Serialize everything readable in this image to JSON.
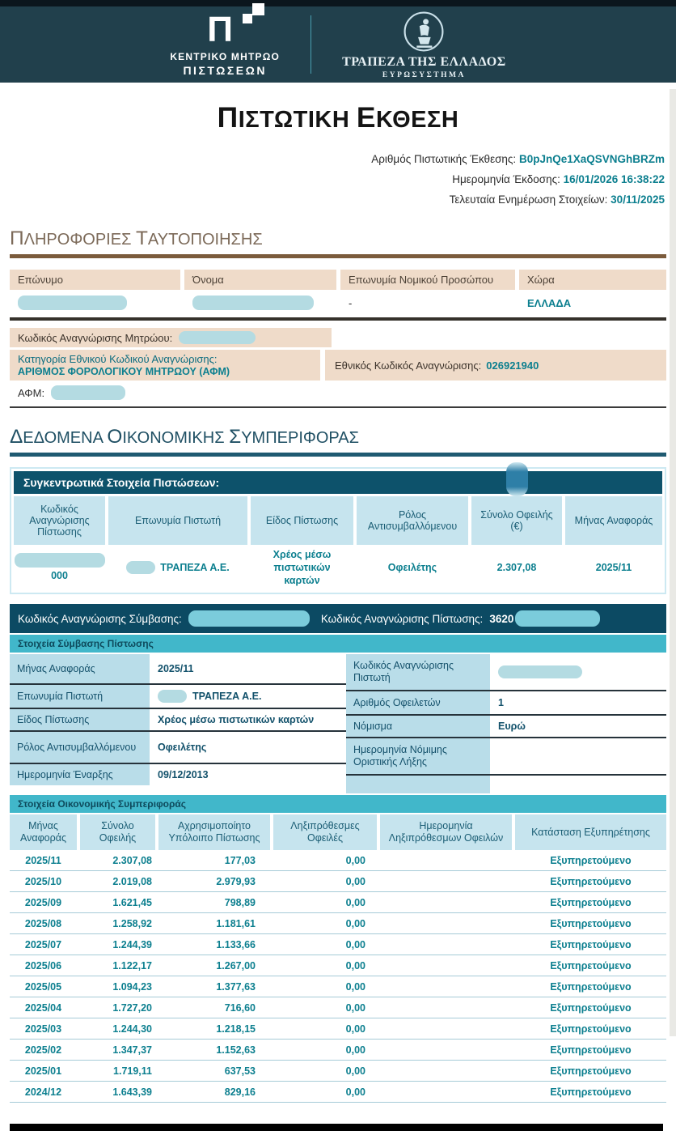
{
  "page": {
    "title": "ΠΙΣΤΩΤΙΚΗ ΕΚΘΕΣΗ"
  },
  "header": {
    "left_logo": {
      "line1": "ΚΕΝΤΡΙΚΟ ΜΗΤΡΩΟ",
      "line2": "ΠΙΣΤΩΣΕΩΝ"
    },
    "right_logo": {
      "line1": "ΤΡΑΠΕΖΑ ΤΗΣ ΕΛΛΑΔΟΣ",
      "line2": "ΕΥΡΩΣΥΣΤΗΜΑ"
    }
  },
  "meta": {
    "report_number_label": "Αριθμός Πιστωτικής Έκθεσης:",
    "report_number": "B0pJnQe1XaQSVNGhBRZm",
    "issue_date_label": "Ημερομηνία Έκδοσης:",
    "issue_date": "16/01/2026 16:38:22",
    "last_update_label": "Τελευταία Ενημέρωση Στοιχείων:",
    "last_update": "30/11/2025"
  },
  "identification": {
    "heading": "ΠΛΗΡΟΦΟΡΙΕΣ ΤΑΥΤΟΠΟΙΗΣΗΣ",
    "table1": {
      "headers": [
        "Επώνυμο",
        "Όνομα",
        "Επωνυμία Νομικού Προσώπου",
        "Χώρα"
      ],
      "legal_entity_value": "-",
      "country_value": "ΕΛΛΑΔΑ"
    },
    "registry_code_label": "Κωδικός Αναγνώρισης Μητρώου:",
    "category_label": "Κατηγορία Εθνικού Κωδικού Αναγνώρισης:",
    "category_value": "ΑΡΙΘΜΟΣ ΦΟΡΟΛΟΓΙΚΟΥ ΜΗΤΡΩΟΥ (ΑΦΜ)",
    "national_code_label": "Εθνικός Κωδικός Αναγνώρισης:",
    "national_code": "026921940",
    "afm_label": "ΑΦΜ:"
  },
  "financial": {
    "heading": "ΔΕΔΟΜΕΝΑ ΟΙΚΟΝΟΜΙΚΗΣ ΣΥΜΠΕΡΙΦΟΡΑΣ",
    "summary": {
      "title": "Συγκεντρωτικά Στοιχεία Πιστώσεων:",
      "headers": [
        "Κωδικός Αναγνώρισης Πίστωσης",
        "Επωνυμία Πιστωτή",
        "Είδος Πίστωσης",
        "Ρόλος Αντισυμβαλλόμενου",
        "Σύνολο Οφειλής (€)",
        "Μήνας Αναφοράς"
      ],
      "row": {
        "credit_code": "000",
        "creditor": "ΤΡΑΠΕΖΑ Α.Ε.",
        "credit_type": "Χρέος μέσω πιστωτικών καρτών",
        "role": "Οφειλέτης",
        "total_due": "2.307,08",
        "reference_month": "2025/11"
      }
    },
    "contract": {
      "contract_code_label": "Κωδικός Αναγνώρισης Σύμβασης:",
      "credit_code_label": "Κωδικός Αναγνώρισης Πίστωσης:",
      "credit_code_visible": "3620",
      "subheader": "Στοιχεία Σύμβασης Πίστωσης",
      "left_rows": [
        {
          "label": "Μήνας Αναφοράς",
          "value": "2025/11",
          "redacted": false
        },
        {
          "label": "Επωνυμία Πιστωτή",
          "value": "ΤΡΑΠΕΖΑ Α.Ε.",
          "redacted": true
        },
        {
          "label": "Είδος Πίστωσης",
          "value": "Χρέος μέσω πιστωτικών καρτών",
          "redacted": false
        },
        {
          "label": "Ρόλος Αντισυμβαλλόμενου",
          "value": "Οφειλέτης",
          "redacted": false
        },
        {
          "label": "Ημερομηνία Έναρξης",
          "value": "09/12/2013",
          "redacted": false
        }
      ],
      "right_rows": [
        {
          "label": "Κωδικός Αναγνώρισης Πιστωτή",
          "value": "",
          "redacted": true
        },
        {
          "label": "Αριθμός Οφειλετών",
          "value": "1",
          "redacted": false
        },
        {
          "label": "Νόμισμα",
          "value": "Ευρώ",
          "redacted": false
        },
        {
          "label": "Ημερομηνία Νόμιμης Οριστικής Λήξης",
          "value": "",
          "redacted": false
        },
        {
          "label": "",
          "value": "",
          "redacted": false
        }
      ]
    },
    "behavior": {
      "subheader": "Στοιχεία Οικονομικής Συμπεριφοράς",
      "headers": [
        "Μήνας Αναφοράς",
        "Σύνολο Οφειλής",
        "Αχρησιμοποίητο Υπόλοιπο Πίστωσης",
        "Ληξιπρόθεσμες Οφειλές",
        "Ημερομηνία Ληξιπρόθεσμων Οφειλών",
        "Κατάσταση Εξυπηρέτησης"
      ],
      "rows": [
        [
          "2025/11",
          "2.307,08",
          "177,03",
          "0,00",
          "",
          "Εξυπηρετούμενο"
        ],
        [
          "2025/10",
          "2.019,08",
          "2.979,93",
          "0,00",
          "",
          "Εξυπηρετούμενο"
        ],
        [
          "2025/09",
          "1.621,45",
          "798,89",
          "0,00",
          "",
          "Εξυπηρετούμενο"
        ],
        [
          "2025/08",
          "1.258,92",
          "1.181,61",
          "0,00",
          "",
          "Εξυπηρετούμενο"
        ],
        [
          "2025/07",
          "1.244,39",
          "1.133,66",
          "0,00",
          "",
          "Εξυπηρετούμενο"
        ],
        [
          "2025/06",
          "1.122,17",
          "1.267,00",
          "0,00",
          "",
          "Εξυπηρετούμενο"
        ],
        [
          "2025/05",
          "1.094,23",
          "1.377,63",
          "0,00",
          "",
          "Εξυπηρετούμενο"
        ],
        [
          "2025/04",
          "1.727,20",
          "716,60",
          "0,00",
          "",
          "Εξυπηρετούμενο"
        ],
        [
          "2025/03",
          "1.244,30",
          "1.218,15",
          "0,00",
          "",
          "Εξυπηρετούμενο"
        ],
        [
          "2025/02",
          "1.347,37",
          "1.152,63",
          "0,00",
          "",
          "Εξυπηρετούμενο"
        ],
        [
          "2025/01",
          "1.719,11",
          "637,53",
          "0,00",
          "",
          "Εξυπηρετούμενο"
        ],
        [
          "2024/12",
          "1.643,39",
          "829,16",
          "0,00",
          "",
          "Εξυπηρετούμενο"
        ]
      ]
    }
  },
  "colors": {
    "accent_teal": "#0c7f8f",
    "header_bg": "#21404c",
    "bar_dark_teal": "#0d526b",
    "bar_light_teal": "#41b7ca",
    "cell_light_blue": "#c6e4ee",
    "tan_cell": "#efdbc9",
    "brown_rule": "#7b5b3c"
  }
}
